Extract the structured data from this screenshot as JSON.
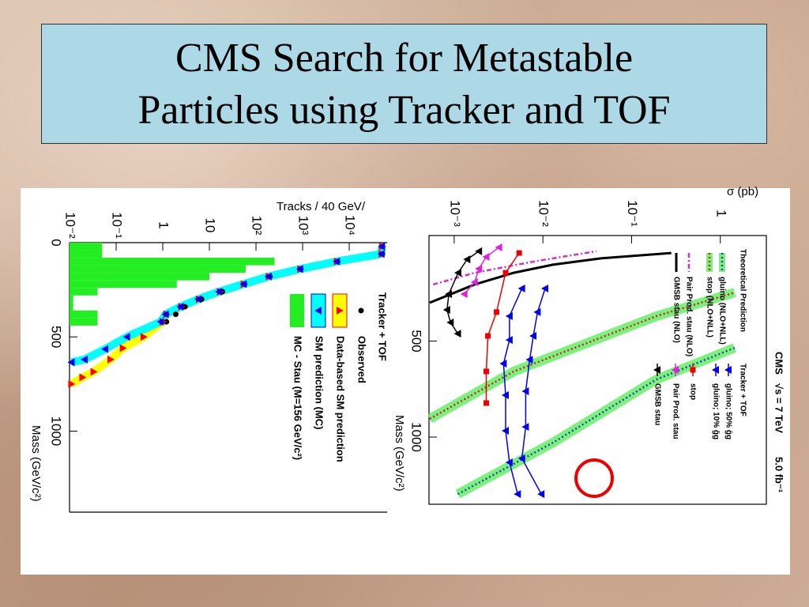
{
  "slide": {
    "title": [
      "CMS Search for Metastable",
      "Particles using Tracker and TOF"
    ]
  },
  "chart_data": [
    {
      "type": "scatter",
      "title": "Tracker + TOF",
      "xlabel": "Mass (GeV/c²)",
      "ylabel": "Tracks / 40 GeV/",
      "xlim": [
        0,
        1430
      ],
      "xticks": [
        0,
        500,
        1000
      ],
      "ylog": true,
      "ylim": [
        0.01,
        65000
      ],
      "yticks": [
        {
          "value": 0.01,
          "label": "10⁻²"
        },
        {
          "value": 0.1,
          "label": "10⁻¹"
        },
        1,
        10,
        {
          "value": 100,
          "label": "10²"
        },
        {
          "value": 1000,
          "label": "10³"
        },
        {
          "value": 10000,
          "label": "10⁴"
        }
      ],
      "histogram": {
        "name": "MC - Stau (M=156 GeV/c²)",
        "color": "#22ee22",
        "bins": [
          0,
          40,
          80,
          120,
          160,
          200,
          240,
          280,
          320,
          360,
          400,
          440
        ],
        "counts": [
          0.05,
          0.05,
          250,
          60,
          10,
          2,
          0.04,
          0.012,
          0.012,
          0.04,
          0.04
        ]
      },
      "series": [
        {
          "name": "Observed",
          "color": "#000000",
          "marker": "circle",
          "x": [
            20,
            60,
            100,
            140,
            180,
            220,
            260,
            300,
            340,
            380,
            420
          ],
          "values": [
            51000,
            51000,
            5600,
            890,
            200,
            57,
            19,
            6.8,
            3,
            1.9,
            1.2
          ]
        },
        {
          "name": "Data-based SM prediction",
          "color": "#ff0000",
          "band_color": "#ffff00",
          "marker": "triangle-right",
          "x": [
            20,
            60,
            100,
            140,
            180,
            220,
            260,
            300,
            340,
            380,
            420,
            500,
            560,
            620,
            685,
            715,
            750
          ],
          "values": [
            51000,
            50000,
            5500,
            900,
            190,
            55,
            17,
            6,
            2.5,
            1.2,
            1,
            0.39,
            0.14,
            0.076,
            0.033,
            0.019,
            0.011
          ]
        },
        {
          "name": "SM prediction (MC)",
          "color": "#0000ff",
          "band_color": "#00ffff",
          "marker": "triangle-left",
          "x": [
            20,
            60,
            100,
            140,
            180,
            220,
            260,
            300,
            340,
            380,
            420,
            500,
            565,
            620,
            635
          ],
          "values": [
            50000,
            49000,
            5400,
            880,
            185,
            54,
            16,
            5.8,
            2.4,
            1.15,
            0.9,
            0.17,
            0.058,
            0.021,
            0.011
          ]
        }
      ]
    },
    {
      "type": "line",
      "title": "CMS",
      "subtitle": "√s = 7 TeV",
      "luminosity": "5.0 fb⁻¹",
      "xlabel": "Mass (GeV/c²)",
      "ylabel": "σ (pb)",
      "xlim": [
        -50,
        1350
      ],
      "xticks": [
        500,
        1000
      ],
      "ylog": true,
      "ylim": [
        0.00052,
        3.3
      ],
      "yticks": [
        {
          "value": 0.001,
          "label": "10⁻³"
        },
        {
          "value": 0.01,
          "label": "10⁻²"
        },
        {
          "value": 0.1,
          "label": "10⁻¹"
        },
        1
      ],
      "theory_title": "Theoretical Prediction",
      "theory": [
        {
          "name": "gluino (NLO+NLL)",
          "style": "band",
          "color": "#66ee66",
          "line_color": "#2244aa",
          "x": [
            1297,
            1029,
            700,
            535
          ],
          "values": [
            0.0011,
            0.013,
            0.19,
            1.45
          ]
        },
        {
          "name": "stop  (NLO+NLL)",
          "style": "band",
          "color": "#66ee66",
          "line_color": "#cc2222",
          "x": [
            905,
            658,
            370,
            247
          ],
          "values": [
            0.00053,
            0.0047,
            0.19,
            1.45
          ]
        },
        {
          "name": "Pair Prod. stau  (NLO)",
          "style": "dashed",
          "color": "#cc33cc",
          "x": [
            205,
            144,
            82,
            32
          ],
          "values": [
            0.00058,
            0.0017,
            0.0087,
            0.04
          ]
        },
        {
          "name": "GMSB stau  (NLO)",
          "style": "solid",
          "color": "#000000",
          "x": [
            300,
            205,
            144,
            102,
            69,
            41
          ],
          "values": [
            0.00053,
            0.0017,
            0.0047,
            0.013,
            0.045,
            0.28
          ]
        }
      ],
      "series_title": "Tracker + TOF",
      "series": [
        {
          "name": "gluino; 50% g̃g",
          "color": "#0000ee",
          "marker": "triangle-left",
          "x": [
            226,
            349,
            473,
            597,
            761,
            947,
            1111,
            1297
          ],
          "values": [
            0.0106,
            0.0087,
            0.0078,
            0.0071,
            0.0064,
            0.0064,
            0.0058,
            0.0096
          ]
        },
        {
          "name": "gluino; 10% g̃g",
          "color": "#0000ee",
          "marker": "triangle-left",
          "x": [
            226,
            370,
            494,
            617,
            782,
            967,
            1132,
            1297
          ],
          "values": [
            0.0058,
            0.0042,
            0.0042,
            0.0036,
            0.0038,
            0.0038,
            0.0042,
            0.0052
          ]
        },
        {
          "name": "stop",
          "color": "#ee0000",
          "marker": "square",
          "x": [
            41,
            144,
            349,
            473,
            658,
            823
          ],
          "values": [
            0.0054,
            0.0038,
            0.003,
            0.0024,
            0.0023,
            0.0023
          ]
        },
        {
          "name": "Pair Prod. stau",
          "color": "#dd22dd",
          "marker": "triangle-left",
          "x": [
            12,
            61,
            123,
            193,
            255
          ],
          "values": [
            0.0032,
            0.0023,
            0.0019,
            0.0017,
            0.0013
          ]
        },
        {
          "name": "GMSB stau",
          "color": "#000000",
          "marker": "triangle-left",
          "x": [
            32,
            74,
            144,
            255,
            337,
            403,
            461
          ],
          "values": [
            0.0019,
            0.0014,
            0.00111,
            0.00087,
            0.00083,
            0.00091,
            0.0011
          ]
        }
      ]
    }
  ]
}
